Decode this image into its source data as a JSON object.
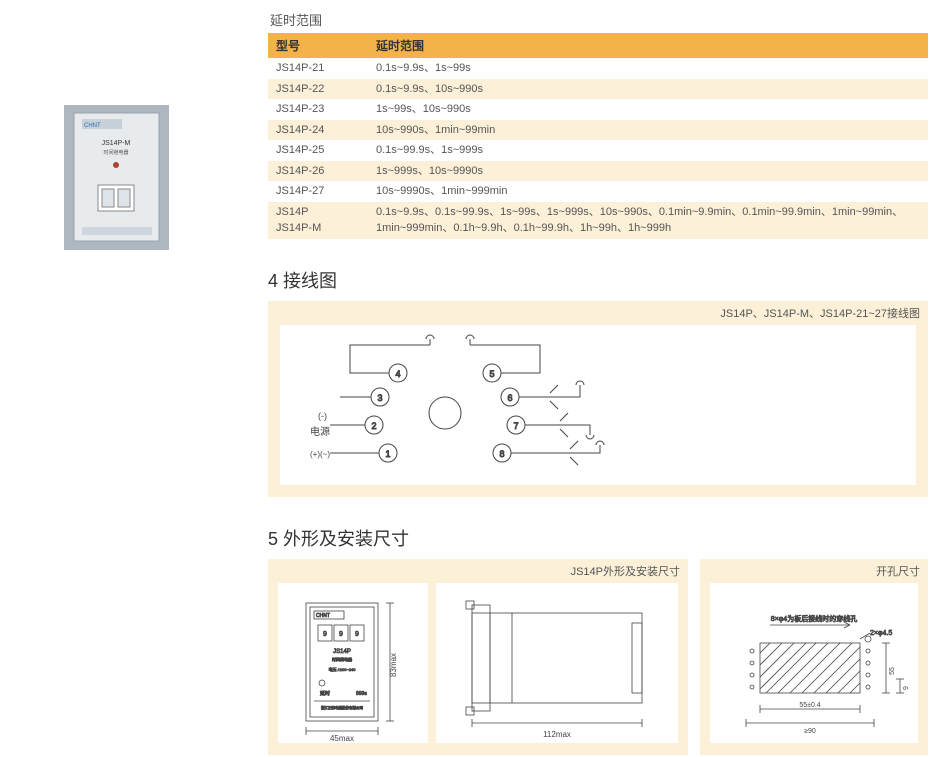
{
  "section_delay_title": "延时范围",
  "table_headers": {
    "model": "型号",
    "range": "延时范围"
  },
  "table_rows": [
    {
      "model": "JS14P-21",
      "range": "0.1s~9.9s、1s~99s"
    },
    {
      "model": "JS14P-22",
      "range": "0.1s~9.9s、10s~990s"
    },
    {
      "model": "JS14P-23",
      "range": "1s~99s、10s~990s"
    },
    {
      "model": "JS14P-24",
      "range": "10s~990s、1min~99min"
    },
    {
      "model": "JS14P-25",
      "range": "0.1s~99.9s、1s~999s"
    },
    {
      "model": "JS14P-26",
      "range": "1s~999s、10s~9990s"
    },
    {
      "model": "JS14P-27",
      "range": "10s~9990s、1min~999min"
    },
    {
      "model": "JS14P\nJS14P-M",
      "range": "0.1s~9.9s、0.1s~99.9s、1s~99s、1s~999s、10s~990s、0.1min~9.9min、0.1min~99.9min、1min~99min、1min~999min、0.1h~9.9h、0.1h~99.9h、1h~99h、1h~999h"
    }
  ],
  "section4_title": "4 接线图",
  "wiring_caption": "JS14P、JS14P-M、JS14P-21~27接线图",
  "wiring": {
    "pin_labels": [
      "1",
      "2",
      "3",
      "4",
      "5",
      "6",
      "7",
      "8"
    ],
    "left_label_top": "(-)",
    "left_label_mid": "电源",
    "left_label_bot": "(+)(~)"
  },
  "section5_title": "5 外形及安装尺寸",
  "dim_caption_left": "JS14P外形及安装尺寸",
  "dim_caption_right": "开孔尺寸",
  "front_view": {
    "brand": "CHNT",
    "model": "JS14P",
    "sub": "时间继电器",
    "volt": "电压 /:100~240",
    "delay": "延时",
    "delay_val": "999s",
    "footer": "浙江正泰电器股份有限公司",
    "width_label": "45max",
    "height_label": "83max"
  },
  "side_view": {
    "depth_label": "112max"
  },
  "hole_view": {
    "note_top": "8×φ4为板后接线时的穿线孔",
    "note_right": "2×φ4.5",
    "w_label": "55±0.4",
    "w_label2": "≥90",
    "h_label": "55",
    "h_label2": "9"
  },
  "product_photo": {
    "brand": "CHNT",
    "model": "JS14P-M",
    "sub": "时间继电器"
  },
  "colors": {
    "header_bg": "#f4b24a",
    "panel_bg": "#fdf0d9",
    "stroke": "#444444",
    "text": "#333333",
    "photo_bg": "#d8dde2"
  }
}
